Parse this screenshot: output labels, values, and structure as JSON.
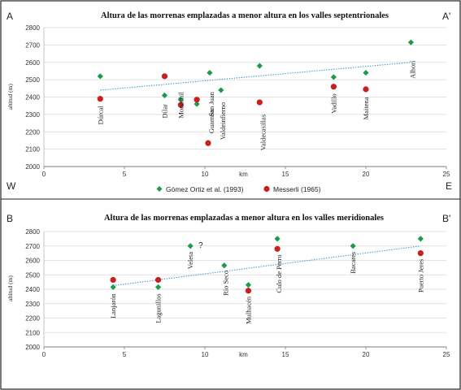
{
  "chart_data": [
    {
      "type": "scatter",
      "corner_left": "A",
      "corner_right": "A'",
      "title": "Altura de las morrenas emplazadas a menor altura en los valles septentrionales",
      "ylabel": "altitud (m)",
      "xlabel": "km",
      "xlim": [
        0,
        25
      ],
      "ylim": [
        2000,
        2800
      ],
      "xticks": [
        0,
        5,
        10,
        15,
        20,
        25
      ],
      "yticks": [
        2000,
        2100,
        2200,
        2300,
        2400,
        2500,
        2600,
        2700,
        2800
      ],
      "orientation_left": "W",
      "orientation_right": "E",
      "grid": "horizontal",
      "legend_position": "bottom",
      "series": [
        {
          "name": "Gómez Ortiz  et al. (1993)",
          "color": "#1e9a4b",
          "marker": "diamond",
          "points": [
            {
              "x": 3.5,
              "y": 2520
            },
            {
              "x": 7.5,
              "y": 2410
            },
            {
              "x": 8.5,
              "y": 2385
            },
            {
              "x": 9.5,
              "y": 2360
            },
            {
              "x": 10.3,
              "y": 2540
            },
            {
              "x": 11,
              "y": 2440
            },
            {
              "x": 13.4,
              "y": 2580
            },
            {
              "x": 18,
              "y": 2515
            },
            {
              "x": 20,
              "y": 2540
            },
            {
              "x": 22.8,
              "y": 2715
            }
          ]
        },
        {
          "name": "Messerli (1965)",
          "color": "#c8201e",
          "marker": "circle",
          "points": [
            {
              "x": 3.5,
              "y": 2390
            },
            {
              "x": 7.5,
              "y": 2520
            },
            {
              "x": 8.5,
              "y": 2355
            },
            {
              "x": 9.5,
              "y": 2385
            },
            {
              "x": 10.2,
              "y": 2135
            },
            {
              "x": 13.4,
              "y": 2370
            },
            {
              "x": 18,
              "y": 2460
            },
            {
              "x": 20,
              "y": 2445
            }
          ]
        }
      ],
      "trendline": {
        "x": [
          3.5,
          22.8
        ],
        "y": [
          2440,
          2600
        ],
        "color": "#3a9ad0"
      },
      "annotations": [
        {
          "text": "Dúrcal",
          "x": 3.5,
          "y": 2350
        },
        {
          "text": "Dílar",
          "x": 7.5,
          "y": 2360
        },
        {
          "text": "Monachil",
          "x": 8.5,
          "y": 2430
        },
        {
          "text": "San Juan",
          "x": 10.4,
          "y": 2430
        },
        {
          "text": "Guarnón",
          "x": 10.4,
          "y": 2330
        },
        {
          "text": "Valdeinfierno",
          "x": 11.1,
          "y": 2370
        },
        {
          "text": "Valdecasillas",
          "x": 13.6,
          "y": 2300
        },
        {
          "text": "Vadillo",
          "x": 18,
          "y": 2420
        },
        {
          "text": "Maitena",
          "x": 20,
          "y": 2400
        },
        {
          "text": "Alhorí",
          "x": 22.9,
          "y": 2610
        }
      ]
    },
    {
      "type": "scatter",
      "corner_left": "B",
      "corner_right": "B'",
      "title": "Altura de las morrenas emplazadas a menor altura en los valles meridionales",
      "ylabel": "altitud (m)",
      "xlabel": "km",
      "xlim": [
        0,
        25
      ],
      "ylim": [
        2000,
        2800
      ],
      "xticks": [
        0,
        5,
        10,
        15,
        20,
        25
      ],
      "yticks": [
        2000,
        2100,
        2200,
        2300,
        2400,
        2500,
        2600,
        2700,
        2800
      ],
      "grid": "horizontal",
      "series": [
        {
          "color": "#1e9a4b",
          "marker": "diamond",
          "points": [
            {
              "x": 4.3,
              "y": 2415
            },
            {
              "x": 7.1,
              "y": 2415
            },
            {
              "x": 9.1,
              "y": 2700
            },
            {
              "x": 11.2,
              "y": 2565
            },
            {
              "x": 12.7,
              "y": 2430
            },
            {
              "x": 14.5,
              "y": 2750
            },
            {
              "x": 19.2,
              "y": 2700
            },
            {
              "x": 23.4,
              "y": 2750
            }
          ]
        },
        {
          "color": "#c8201e",
          "marker": "circle",
          "points": [
            {
              "x": 4.3,
              "y": 2465
            },
            {
              "x": 7.1,
              "y": 2465
            },
            {
              "x": 12.7,
              "y": 2390
            },
            {
              "x": 14.5,
              "y": 2680
            },
            {
              "x": 23.4,
              "y": 2650
            }
          ]
        }
      ],
      "trendline": {
        "x": [
          4.3,
          23.4
        ],
        "y": [
          2425,
          2700
        ],
        "color": "#3a9ad0"
      },
      "annotations": [
        {
          "text": "?",
          "x": 9.6,
          "y": 2710
        },
        {
          "text": "Lanjarón",
          "x": 4.3,
          "y": 2370
        },
        {
          "text": "Lagunillos",
          "x": 7.1,
          "y": 2370
        },
        {
          "text": "Veleta",
          "x": 9.1,
          "y": 2660
        },
        {
          "text": "Río Seco",
          "x": 11.3,
          "y": 2530
        },
        {
          "text": "Mulhacén",
          "x": 12.7,
          "y": 2350
        },
        {
          "text": "Culo de Perro",
          "x": 14.6,
          "y": 2640
        },
        {
          "text": "Bacares",
          "x": 19.2,
          "y": 2660
        },
        {
          "text": "Puerto Jeres",
          "x": 23.4,
          "y": 2610
        }
      ]
    }
  ]
}
